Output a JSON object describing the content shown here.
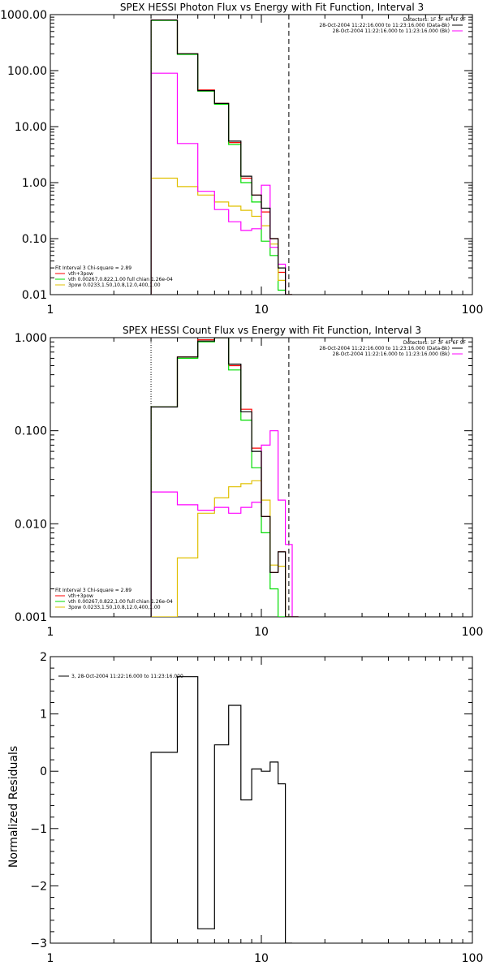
{
  "colors": {
    "data": "#000000",
    "bkg": "#ff00ff",
    "model_total": "#ff0000",
    "vth": "#00dd00",
    "pow": "#e0c000"
  },
  "chart_data": [
    {
      "type": "line",
      "title": "SPEX HESSI Photon Flux vs Energy with Fit Function, Interval 3",
      "xlabel": "",
      "ylabel": "",
      "xscale": "log",
      "yscale": "log",
      "xlim": [
        1,
        100
      ],
      "ylim": [
        0.01,
        1000
      ],
      "xtick_labels": [
        "1",
        "10",
        "100"
      ],
      "ytick_values": [
        0.01,
        0.1,
        1,
        10,
        100,
        1000
      ],
      "ytick_labels": [
        "0.01",
        "0.10",
        "1.00",
        "10.00",
        "100.00",
        "1000.00"
      ],
      "legend_top": [
        "Detectors: 1F 3F 4F 6F 9F",
        "28-Oct-2004 11:22:16.000 to 11:23:16.000 (Data-Bk)",
        "28-Oct-2004 11:22:16.000 to 11:23:16.000 (Bk)"
      ],
      "legend_bottom": [
        "Fit Interval 3   Chi-square = 2.89",
        "vth+3pow",
        "vth 0.00267,0.822,1.00   full chian 1.26e-04",
        "3pow 0.0233,1.50,10.8,12.0,400,1.00"
      ],
      "bin_edges": [
        3,
        4,
        5,
        6,
        7,
        8,
        9,
        10,
        11,
        12,
        13,
        14
      ],
      "vlines": {
        "dotted": 3.0,
        "dashed": 13.5
      },
      "series": [
        {
          "name": "vth+3pow",
          "values": [
            800,
            200,
            45,
            26,
            5.2,
            1.2,
            0.6,
            0.3,
            0.1,
            0.025,
            0.007
          ]
        },
        {
          "name": "vth 0.00267,0.822,1.00   full chian 1.26e-04",
          "values": [
            790,
            195,
            43,
            25,
            4.8,
            1.0,
            0.45,
            0.09,
            0.05,
            0.012,
            0.004
          ]
        },
        {
          "name": "3pow 0.0233,1.50,10.8,12.0,400,1.00",
          "values": [
            1.2,
            0.85,
            0.6,
            0.45,
            0.38,
            0.32,
            0.25,
            0.17,
            0.08,
            0.018,
            0.005
          ]
        },
        {
          "name": "28-Oct-2004 11:22:16.000 to 11:23:16.000 (Bk)",
          "values": [
            90,
            5,
            0.7,
            0.33,
            0.2,
            0.14,
            0.15,
            0.9,
            0.07,
            0.035,
            0.005
          ]
        },
        {
          "name": "28-Oct-2004 11:22:16.000 to 11:23:16.000 (Data-Bk)",
          "values": [
            800,
            200,
            44,
            26,
            5.5,
            1.3,
            0.6,
            0.35,
            0.1,
            0.03,
            0.006
          ]
        }
      ]
    },
    {
      "type": "line",
      "title": "SPEX HESSI Count Flux vs Energy with Fit Function, Interval 3",
      "xlabel": "",
      "ylabel": "",
      "xscale": "log",
      "yscale": "log",
      "xlim": [
        1,
        100
      ],
      "ylim": [
        0.001,
        1.0
      ],
      "xtick_labels": [
        "1",
        "10",
        "100"
      ],
      "ytick_values": [
        0.001,
        0.01,
        0.1,
        1
      ],
      "ytick_labels": [
        "0.001",
        "0.010",
        "0.100",
        "1.000"
      ],
      "legend_top": [
        "Detectors: 1F 3F 4F 6F 9F",
        "28-Oct-2004 11:22:16.000 to 11:23:16.000 (Data-Bk)",
        "28-Oct-2004 11:22:16.000 to 11:23:16.000 (Bk)"
      ],
      "legend_bottom": [
        "Fit Interval 3   Chi-square = 2.89",
        "vth+3pow",
        "vth 0.00267,0.822,1.00   full chian 1.26e-04",
        "3pow 0.0233,1.50,10.8,12.0,400,1.00"
      ],
      "bin_edges": [
        3,
        4,
        5,
        6,
        7,
        8,
        9,
        10,
        11,
        12,
        13,
        14,
        15
      ],
      "vlines": {
        "dotted": 3.0,
        "dashed": 13.5
      },
      "series": [
        {
          "name": "vth+3pow",
          "values": [
            0.18,
            0.62,
            0.95,
            1.0,
            0.5,
            0.17,
            0.065,
            0.012,
            0.003,
            0.005,
            0.001,
            0.001
          ]
        },
        {
          "name": "vth 0.00267,0.822,1.00   full chian 1.26e-04",
          "values": [
            0.18,
            0.6,
            0.9,
            1.0,
            0.45,
            0.13,
            0.04,
            0.008,
            0.002,
            0.001,
            0.001,
            0.001
          ]
        },
        {
          "name": "3pow 0.0233,1.50,10.8,12.0,400,1.00",
          "values": [
            0.001,
            0.0043,
            0.013,
            0.019,
            0.025,
            0.027,
            0.029,
            0.018,
            0.0036,
            0.0035,
            0.001,
            0.001
          ]
        },
        {
          "name": "28-Oct-2004 11:22:16.000 to 11:23:16.000 (Bk)",
          "values": [
            0.022,
            0.016,
            0.014,
            0.015,
            0.013,
            0.015,
            0.017,
            0.07,
            0.1,
            0.018,
            0.006,
            0.001
          ]
        },
        {
          "name": "28-Oct-2004 11:22:16.000 to 11:23:16.000 (Data-Bk)",
          "values": [
            0.18,
            0.62,
            0.92,
            1.0,
            0.52,
            0.16,
            0.06,
            0.012,
            0.003,
            0.005,
            0.001,
            0.001
          ]
        }
      ]
    },
    {
      "type": "line",
      "title": "",
      "xlabel": "",
      "ylabel": "Normalized Residuals",
      "xscale": "log",
      "yscale": "linear",
      "xlim": [
        1,
        100
      ],
      "ylim": [
        -3,
        2
      ],
      "xtick_labels": [
        "1",
        "10",
        "100"
      ],
      "ytick_values": [
        -3,
        -2,
        -1,
        0,
        1,
        2
      ],
      "ytick_labels": [
        "−3",
        "−2",
        "−1",
        "0",
        "1",
        "2"
      ],
      "legend_top": [
        "3, 28-Oct-2004 11:22:16.000 to 11:23:16.000"
      ],
      "bin_edges": [
        3,
        4,
        5,
        6,
        7,
        8,
        9,
        10,
        11,
        12,
        13,
        14
      ],
      "series": [
        {
          "name": "3, 28-Oct-2004 11:22:16.000 to 11:23:16.000",
          "values": [
            0.33,
            1.65,
            -2.75,
            0.46,
            1.15,
            -0.5,
            0.04,
            0.0,
            0.16,
            -0.22,
            -3.0
          ]
        }
      ]
    }
  ]
}
